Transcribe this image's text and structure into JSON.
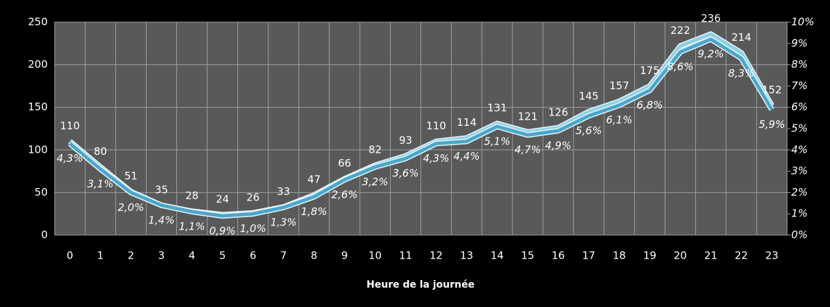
{
  "chart_data": {
    "type": "line",
    "xlabel": "Heure de la journée",
    "categories": [
      "0",
      "1",
      "2",
      "3",
      "4",
      "5",
      "6",
      "7",
      "8",
      "9",
      "10",
      "11",
      "12",
      "13",
      "14",
      "15",
      "16",
      "17",
      "18",
      "19",
      "20",
      "21",
      "22",
      "23"
    ],
    "series": [
      {
        "color": "#8fd0e6",
        "values": [
          110,
          80,
          51,
          35,
          28,
          24,
          26,
          33,
          47,
          66,
          82,
          93,
          110,
          114,
          131,
          121,
          126,
          145,
          157,
          175,
          222,
          236,
          214,
          152
        ]
      },
      {
        "color": "#4ba6cc",
        "axis": "y2",
        "values": [
          4.3,
          3.1,
          2.0,
          1.4,
          1.1,
          0.9,
          1.0,
          1.3,
          1.8,
          2.6,
          3.2,
          3.6,
          4.3,
          4.4,
          5.1,
          4.7,
          4.9,
          5.6,
          6.1,
          6.8,
          8.6,
          9.2,
          8.3,
          5.9
        ],
        "value_labels": [
          "4,3%",
          "3,1%",
          "2,0%",
          "1,4%",
          "1,1%",
          "0,9%",
          "1,0%",
          "1,3%",
          "1,8%",
          "2,6%",
          "3,2%",
          "3,6%",
          "4,3%",
          "4,4%",
          "5,1%",
          "4,7%",
          "4,9%",
          "5,6%",
          "6,1%",
          "6,8%",
          "8,6%",
          "9,2%",
          "8,3%",
          "5,9%"
        ]
      }
    ],
    "ylim": [
      0,
      250
    ],
    "yticks": [
      0,
      50,
      100,
      150,
      200,
      250
    ],
    "y2lim": [
      0,
      10
    ],
    "y2ticks": [
      {
        "value": 0,
        "label": "0%"
      },
      {
        "value": 1,
        "label": "1%"
      },
      {
        "value": 2,
        "label": "2%"
      },
      {
        "value": 3,
        "label": "3%"
      },
      {
        "value": 4,
        "label": "4%"
      },
      {
        "value": 5,
        "label": "5%"
      },
      {
        "value": 6,
        "label": "6%"
      },
      {
        "value": 7,
        "label": "7%"
      },
      {
        "value": 8,
        "label": "8%"
      },
      {
        "value": 9,
        "label": "9%"
      },
      {
        "value": 10,
        "label": "10%"
      }
    ],
    "grid": true
  }
}
